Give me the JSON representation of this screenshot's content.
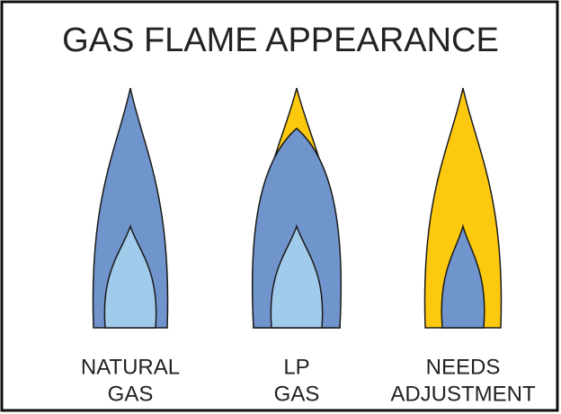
{
  "title": "GAS FLAME APPEARANCE",
  "flames": [
    {
      "label": [
        "NATURAL",
        "GAS"
      ]
    },
    {
      "label": [
        "LP",
        "GAS"
      ]
    },
    {
      "label": [
        "NEEDS",
        "ADJUSTMENT"
      ]
    }
  ]
}
